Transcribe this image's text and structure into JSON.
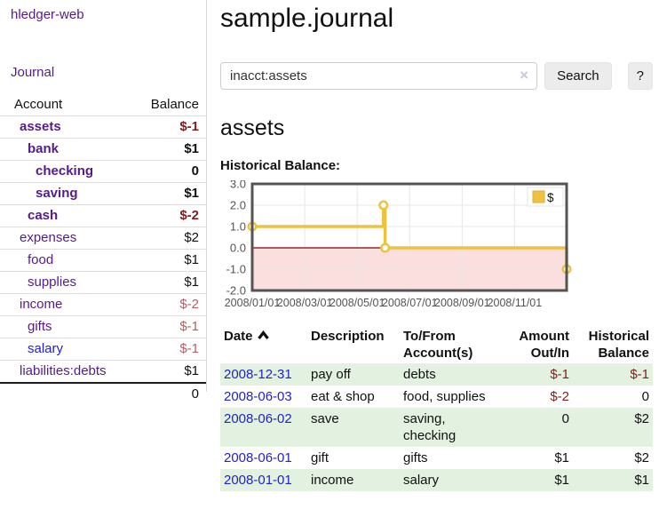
{
  "sidebar": {
    "brand": "hledger-web",
    "nav_journal": "Journal",
    "accounts": {
      "col_account": "Account",
      "col_balance": "Balance",
      "rows": [
        {
          "account": "assets",
          "balance": "$-1",
          "level": 1,
          "bold": true,
          "neg": "strong",
          "link": "purple"
        },
        {
          "account": "bank",
          "balance": "$1",
          "level": 2,
          "bold": true,
          "neg": "none",
          "link": "purple"
        },
        {
          "account": "checking",
          "balance": "0",
          "level": 3,
          "bold": true,
          "neg": "none",
          "link": "purple"
        },
        {
          "account": "saving",
          "balance": "$1",
          "level": 3,
          "bold": true,
          "neg": "none",
          "link": "purple"
        },
        {
          "account": "cash",
          "balance": "$-2",
          "level": 2,
          "bold": true,
          "neg": "strong",
          "link": "purple"
        },
        {
          "account": "expenses",
          "balance": "$2",
          "level": 1,
          "bold": false,
          "neg": "none",
          "link": "purple"
        },
        {
          "account": "food",
          "balance": "$1",
          "level": 2,
          "bold": false,
          "neg": "none",
          "link": "purple"
        },
        {
          "account": "supplies",
          "balance": "$1",
          "level": 2,
          "bold": false,
          "neg": "none",
          "link": "purple"
        },
        {
          "account": "income",
          "balance": "$-2",
          "level": 1,
          "bold": false,
          "neg": "soft",
          "link": "purple"
        },
        {
          "account": "gifts",
          "balance": "$-1",
          "level": 2,
          "bold": false,
          "neg": "soft",
          "link": "purple"
        },
        {
          "account": "salary",
          "balance": "$-1",
          "level": 2,
          "bold": false,
          "neg": "soft",
          "link": "blue"
        },
        {
          "account": "liabilities:debts",
          "balance": "$1",
          "level": 1,
          "bold": false,
          "neg": "none",
          "link": "purple"
        }
      ],
      "total": "0"
    }
  },
  "header": {
    "title": "sample.journal"
  },
  "search": {
    "value": "inacct:assets",
    "clear_icon": "×",
    "search_button": "Search",
    "help_button": "?"
  },
  "account_page": {
    "heading": "assets",
    "chart_title": "Historical Balance:"
  },
  "chart_data": {
    "type": "line",
    "step": true,
    "title": "Historical Balance:",
    "legend": {
      "label": "$",
      "position": "top-right"
    },
    "y_ticks": [
      "3.0",
      "2.0",
      "1.0",
      "0.0",
      "-1.0",
      "-2.0"
    ],
    "ylim": [
      -2,
      3
    ],
    "x_ticks": [
      "2008/01/01",
      "2008/03/01",
      "2008/05/01",
      "2008/07/01",
      "2008/09/01",
      "2008/11/01"
    ],
    "x_tick_months": [
      0,
      2,
      4,
      6,
      8,
      10
    ],
    "points": [
      {
        "x": "2008-01-01",
        "y": 1
      },
      {
        "x": "2008-06-01",
        "y": 2
      },
      {
        "x": "2008-06-03",
        "y": 0
      },
      {
        "x": "2008-12-31",
        "y": -1
      }
    ],
    "colors": {
      "series": "#edc240",
      "marker_fill": "#ffffff",
      "negative_fill": "#fbdede",
      "zero_line": "#800000",
      "grid": "#e7e7e7",
      "border": "#545454",
      "axis_text": "#545454"
    }
  },
  "register": {
    "headers": [
      "Date",
      "Description",
      "To/From Account(s)",
      "Amount Out/In",
      "Historical Balance"
    ],
    "rows": [
      {
        "date": "2008-12-31",
        "description": "pay off",
        "accounts": "debts",
        "amount": "$-1",
        "amount_neg": true,
        "balance": "$-1",
        "balance_neg": true,
        "shaded": true
      },
      {
        "date": "2008-06-03",
        "description": "eat & shop",
        "accounts": "food, supplies",
        "amount": "$-2",
        "amount_neg": true,
        "balance": "0",
        "balance_neg": false,
        "shaded": false
      },
      {
        "date": "2008-06-02",
        "description": "save",
        "accounts": "saving, checking",
        "amount": "0",
        "amount_neg": false,
        "balance": "$2",
        "balance_neg": false,
        "shaded": true
      },
      {
        "date": "2008-06-01",
        "description": "gift",
        "accounts": "gifts",
        "amount": "$1",
        "amount_neg": false,
        "balance": "$2",
        "balance_neg": false,
        "shaded": false
      },
      {
        "date": "2008-01-01",
        "description": "income",
        "accounts": "salary",
        "amount": "$1",
        "amount_neg": false,
        "balance": "$1",
        "balance_neg": false,
        "shaded": true
      }
    ]
  },
  "colors": {
    "link_purple": "#551a8b",
    "link_blue": "#2222cc",
    "negative_strong": "#7f1d1d",
    "negative_soft": "#b06066",
    "row_green": "#e3f1e0"
  }
}
